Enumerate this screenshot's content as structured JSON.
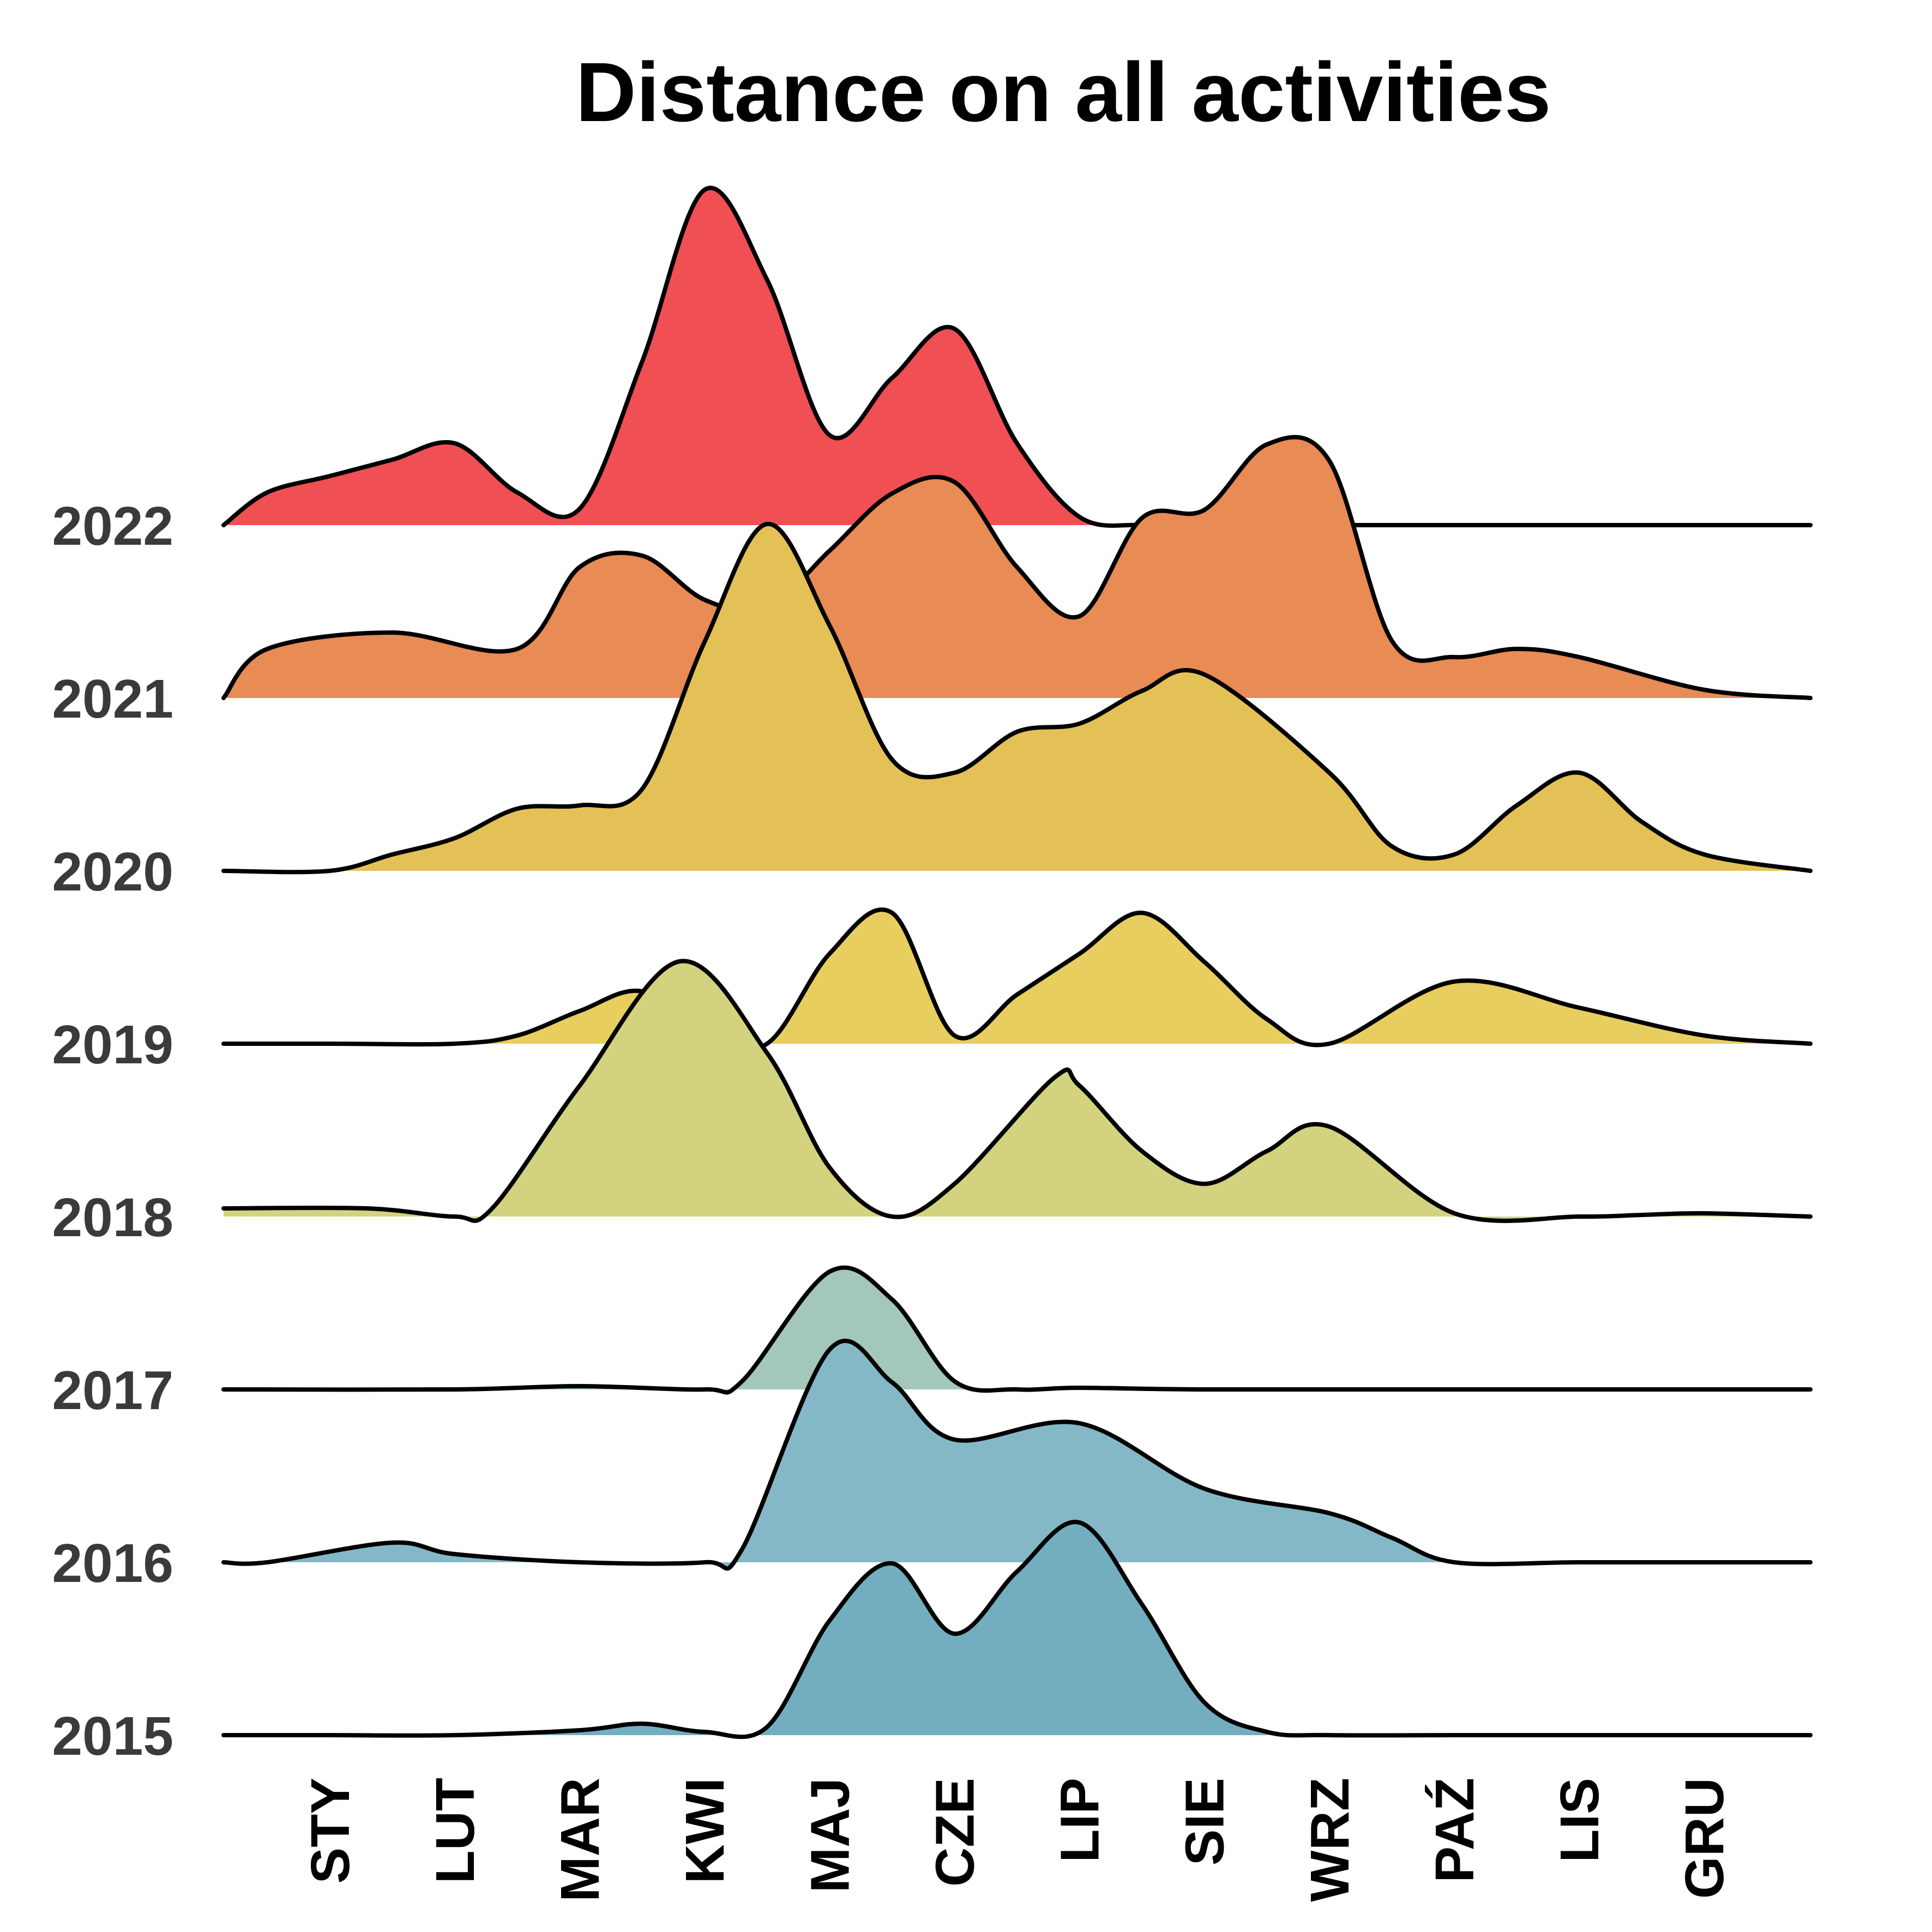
{
  "chart_data": {
    "type": "ridgeline",
    "title": "Distance on all activities",
    "xlabel": "",
    "ylabel": "",
    "categories": [
      "STY",
      "LUT",
      "MAR",
      "KWI",
      "MAJ",
      "CZE",
      "LIP",
      "SIE",
      "WRZ",
      "PAŹ",
      "LIS",
      "GRU"
    ],
    "grid": false,
    "legend": "none",
    "series": [
      {
        "name": "2015",
        "color": "#73aec0",
        "x": [
          0.15,
          1,
          2,
          3,
          3.5,
          4,
          4.5,
          5,
          5.5,
          6,
          6.5,
          7,
          7.5,
          8,
          8.5,
          9,
          10,
          11,
          12.85
        ],
        "values": [
          0,
          0,
          0,
          0.03,
          0.07,
          0.02,
          0.05,
          0.7,
          1.05,
          0.62,
          1.0,
          1.3,
          0.8,
          0.2,
          0.02,
          0,
          0,
          0,
          0
        ]
      },
      {
        "name": "2016",
        "color": "#84b8c6",
        "x": [
          0.15,
          0.5,
          1.5,
          2,
          3,
          4,
          4.3,
          5,
          5.5,
          6,
          7,
          8,
          9,
          9.5,
          10,
          11,
          12,
          12.85
        ],
        "values": [
          0,
          0,
          0.12,
          0.05,
          0,
          0,
          0.08,
          1.3,
          1.1,
          0.75,
          0.85,
          0.45,
          0.3,
          0.15,
          0,
          0,
          0,
          0
        ]
      },
      {
        "name": "2017",
        "color": "#a3c7ba",
        "x": [
          0.15,
          2,
          3,
          4,
          4.3,
          5,
          5.5,
          6,
          6.5,
          7,
          8,
          10,
          12.85
        ],
        "values": [
          0,
          0,
          0.02,
          0,
          0.05,
          0.72,
          0.55,
          0.05,
          0,
          0.01,
          0,
          0,
          0
        ]
      },
      {
        "name": "2018",
        "color": "#d3d37f",
        "x": [
          0.15,
          1.3,
          2,
          2.3,
          3,
          3.8,
          4.5,
          5,
          5.5,
          6,
          6.8,
          7,
          7.5,
          8,
          8.5,
          9,
          10,
          11,
          11.5,
          12,
          12.85
        ],
        "values": [
          0.05,
          0.05,
          0,
          0.05,
          0.8,
          1.56,
          1.0,
          0.3,
          0,
          0.2,
          0.85,
          0.8,
          0.4,
          0.2,
          0.4,
          0.55,
          0.02,
          0,
          0.01,
          0.02,
          0
        ]
      },
      {
        "name": "2019",
        "color": "#e8ce5f",
        "x": [
          0.15,
          1,
          2,
          2.5,
          3,
          3.5,
          4,
          4.5,
          5,
          5.5,
          6,
          6.5,
          7,
          7.5,
          8,
          8.5,
          9,
          10,
          11,
          12,
          12.85
        ],
        "values": [
          0,
          0,
          0,
          0.05,
          0.2,
          0.32,
          0.05,
          0,
          0.55,
          0.8,
          0.05,
          0.3,
          0.55,
          0.8,
          0.5,
          0.15,
          0,
          0.38,
          0.22,
          0.05,
          0
        ]
      },
      {
        "name": "2020",
        "color": "#e3c157",
        "x": [
          0.15,
          1,
          1.5,
          2,
          2.5,
          3,
          3.5,
          4,
          4.5,
          5,
          5.5,
          6,
          6.5,
          7,
          7.5,
          8,
          9,
          9.5,
          10,
          10.5,
          11,
          11.5,
          12,
          12.85
        ],
        "values": [
          0,
          0,
          0.1,
          0.2,
          0.38,
          0.4,
          0.5,
          1.4,
          2.12,
          1.5,
          0.68,
          0.6,
          0.85,
          0.9,
          1.1,
          1.2,
          0.6,
          0.15,
          0.1,
          0.4,
          0.6,
          0.3,
          0.1,
          0
        ]
      },
      {
        "name": "2021",
        "color": "#e88b55",
        "x": [
          0.15,
          0.5,
          1.5,
          2.5,
          3,
          3.5,
          4,
          4.5,
          5,
          5.5,
          6,
          6.5,
          7,
          7.5,
          8,
          8.5,
          9,
          9.5,
          10,
          10.5,
          11,
          12,
          12.85
        ],
        "values": [
          0,
          0.3,
          0.4,
          0.3,
          0.8,
          0.87,
          0.6,
          0.55,
          0.9,
          1.25,
          1.32,
          0.8,
          0.5,
          1.1,
          1.15,
          1.55,
          1.45,
          0.35,
          0.25,
          0.3,
          0.25,
          0.05,
          0
        ]
      },
      {
        "name": "2022",
        "color": "#f04f53",
        "x": [
          0.15,
          0.5,
          1,
          1.5,
          2,
          2.5,
          3,
          3.5,
          4,
          4.5,
          5,
          5.5,
          6,
          6.5,
          7,
          7.5,
          8,
          9,
          10,
          11,
          12,
          12.85
        ],
        "values": [
          0,
          0.2,
          0.3,
          0.4,
          0.5,
          0.2,
          0.1,
          1.0,
          2.05,
          1.5,
          0.55,
          0.9,
          1.2,
          0.5,
          0.05,
          0,
          0,
          0,
          0,
          0,
          0,
          0
        ]
      }
    ]
  }
}
